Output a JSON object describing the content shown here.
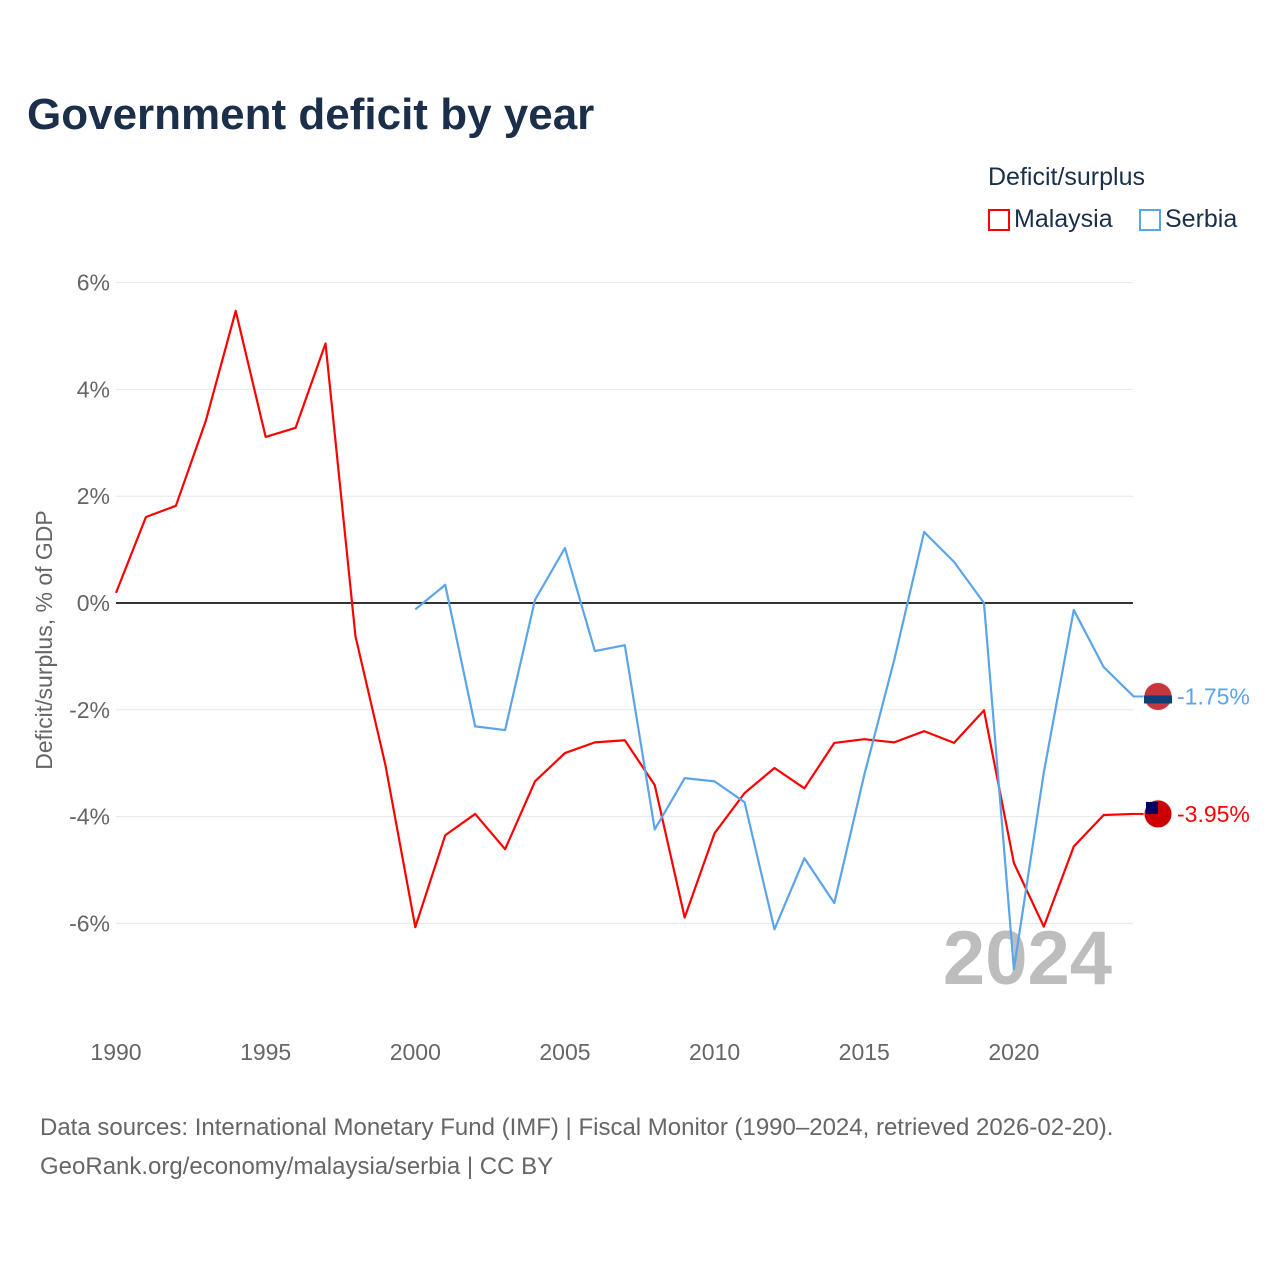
{
  "title": "Government deficit by year",
  "legend": {
    "title": "Deficit/surplus",
    "items": [
      {
        "label": "Malaysia",
        "color": "#ff0000"
      },
      {
        "label": "Serbia",
        "color": "#5aa5ea"
      }
    ]
  },
  "footer": {
    "line1": "Data sources: International Monetary Fund (IMF) | Fiscal Monitor (1990–2024, retrieved 2026-02-20).",
    "line2": "GeoRank.org/economy/malaysia/serbia | CC BY"
  },
  "chart_data": {
    "type": "line",
    "title": "Government deficit by year",
    "ylabel": "Deficit/surplus, % of GDP",
    "xlabel": "",
    "xlim": [
      1990,
      2024
    ],
    "ylim": [
      -8,
      6.5
    ],
    "xticks": [
      1990,
      1995,
      2000,
      2005,
      2010,
      2015,
      2020
    ],
    "yticks": [
      6,
      4,
      2,
      0,
      -2,
      -4,
      -6
    ],
    "ytick_labels": [
      "6%",
      "4%",
      "2%",
      "0%",
      "-2%",
      "-4%",
      "-6%"
    ],
    "year_watermark": "2024",
    "grid": true,
    "legend_placement": "top-right",
    "series": [
      {
        "name": "Malaysia",
        "color": "#ff0000",
        "end_label": "-3.95%",
        "start": 1990,
        "values": [
          0.19,
          1.61,
          1.82,
          3.41,
          5.47,
          3.11,
          3.28,
          4.86,
          -0.62,
          -3.03,
          -6.07,
          -4.35,
          -3.95,
          -4.61,
          -3.34,
          -2.81,
          -2.61,
          -2.57,
          -3.41,
          -5.89,
          -4.31,
          -3.56,
          -3.09,
          -3.47,
          -2.62,
          -2.55,
          -2.61,
          -2.4,
          -2.62,
          -2.01,
          -4.87,
          -6.06,
          -4.56,
          -3.97,
          -3.95
        ]
      },
      {
        "name": "Serbia",
        "color": "#5aa5ea",
        "end_label": "-1.75%",
        "start": 2000,
        "values": [
          -0.12,
          0.34,
          -2.31,
          -2.38,
          0.06,
          1.03,
          -0.9,
          -0.79,
          -4.24,
          -3.28,
          -3.34,
          -3.73,
          -6.11,
          -4.78,
          -5.62,
          -3.22,
          -1.07,
          1.33,
          0.77,
          0.0,
          -6.86,
          -3.17,
          -0.13,
          -1.2,
          -1.75
        ]
      }
    ]
  }
}
